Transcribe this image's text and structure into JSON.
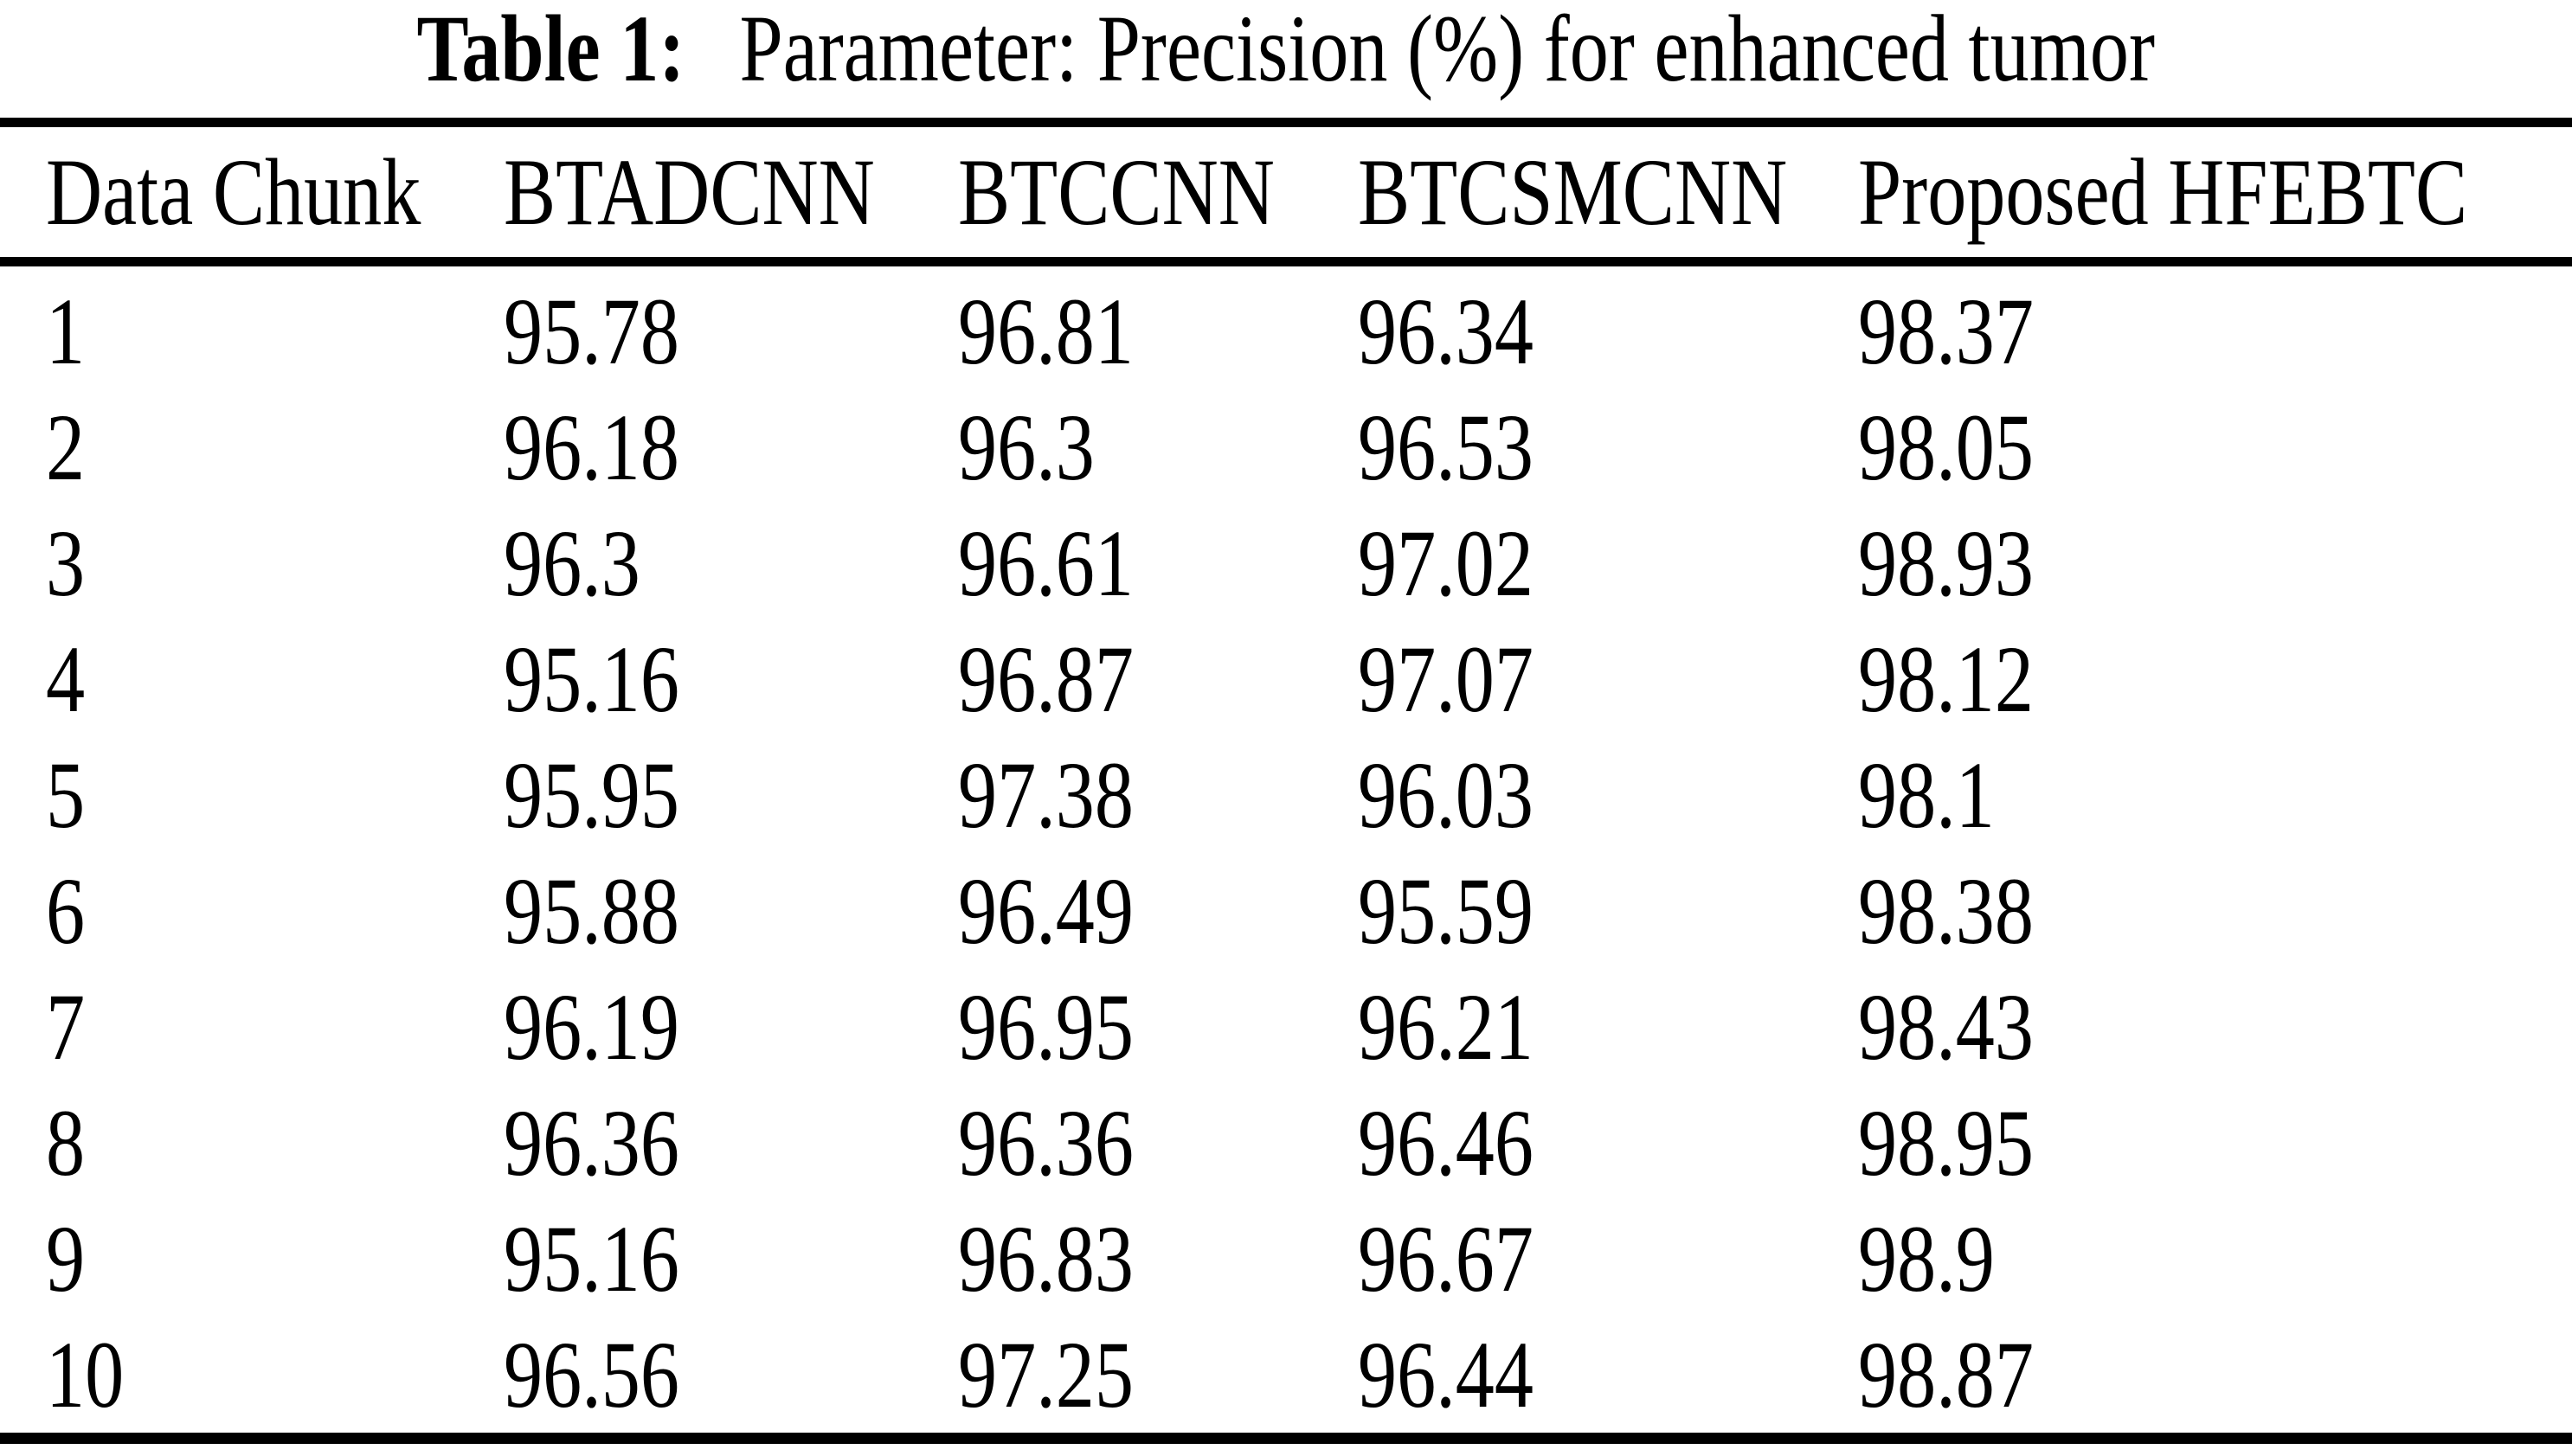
{
  "title": {
    "label": "Table 1:",
    "text": "Parameter: Precision (%) for enhanced tumor"
  },
  "table": {
    "columns": [
      "Data Chunk",
      "BTADCNN",
      "BTCCNN",
      "BTCSMCNN",
      "Proposed HFEBTC"
    ],
    "rows": [
      {
        "chunk": "1",
        "values": [
          "95.78",
          "96.81",
          "96.34",
          "98.37"
        ]
      },
      {
        "chunk": "2",
        "values": [
          "96.18",
          "96.3",
          "96.53",
          "98.05"
        ]
      },
      {
        "chunk": "3",
        "values": [
          "96.3",
          "96.61",
          "97.02",
          "98.93"
        ]
      },
      {
        "chunk": "4",
        "values": [
          "95.16",
          "96.87",
          "97.07",
          "98.12"
        ]
      },
      {
        "chunk": "5",
        "values": [
          "95.95",
          "97.38",
          "96.03",
          "98.1"
        ]
      },
      {
        "chunk": "6",
        "values": [
          "95.88",
          "96.49",
          "95.59",
          "98.38"
        ]
      },
      {
        "chunk": "7",
        "values": [
          "96.19",
          "96.95",
          "96.21",
          "98.43"
        ]
      },
      {
        "chunk": "8",
        "values": [
          "96.36",
          "96.36",
          "96.46",
          "98.95"
        ]
      },
      {
        "chunk": "9",
        "values": [
          "95.16",
          "96.83",
          "96.67",
          "98.9"
        ]
      },
      {
        "chunk": "10",
        "values": [
          "96.56",
          "97.25",
          "96.44",
          "98.87"
        ]
      }
    ]
  },
  "colors": {
    "background": "#ffffff",
    "text": "#000000",
    "rule": "#000000"
  }
}
